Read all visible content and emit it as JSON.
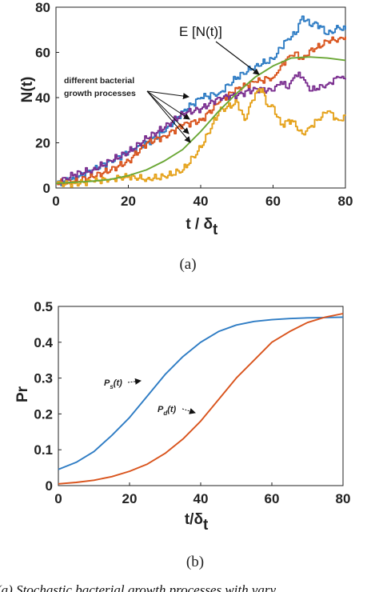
{
  "chart_data": [
    {
      "type": "line",
      "x_ticks": [
        0,
        20,
        40,
        60,
        80
      ],
      "y_ticks": [
        0,
        20,
        40,
        60,
        80
      ],
      "xlim": [
        0,
        80
      ],
      "ylim": [
        0,
        80
      ],
      "xlabel": "t / δt",
      "xlabel_main": "t / δ",
      "xlabel_sub": "t",
      "ylabel": "N(t)",
      "sublabel": "(a)",
      "annotations": {
        "expected": "E [N(t)]",
        "processes_line1": "different bacterial",
        "processes_line2": "growth processes"
      },
      "series": [
        {
          "name": "",
          "color": "#2e7cc4",
          "x": [
            0,
            5,
            10,
            15,
            20,
            25,
            30,
            35,
            40,
            45,
            50,
            55,
            60,
            62,
            64,
            66,
            68,
            70,
            72,
            75,
            78,
            80
          ],
          "y": [
            2,
            4,
            8,
            12,
            16,
            20,
            25,
            34,
            40,
            42,
            49,
            54,
            57,
            62,
            66,
            68,
            76,
            72,
            73,
            68,
            71,
            70
          ]
        },
        {
          "name": "",
          "color": "#d9541d",
          "x": [
            0,
            5,
            10,
            15,
            20,
            25,
            30,
            35,
            40,
            45,
            50,
            55,
            60,
            62,
            64,
            66,
            68,
            70,
            72,
            75,
            78,
            80
          ],
          "y": [
            2,
            3,
            5,
            8,
            12,
            20,
            23,
            28,
            30,
            38,
            44,
            47,
            49,
            54,
            58,
            60,
            57,
            61,
            62,
            65,
            66,
            67
          ]
        },
        {
          "name": "",
          "color": "#7a2e8f",
          "x": [
            0,
            5,
            10,
            15,
            20,
            25,
            30,
            35,
            40,
            45,
            50,
            55,
            60,
            62,
            64,
            66,
            68,
            70,
            72,
            75,
            78,
            80
          ],
          "y": [
            2,
            6,
            8,
            12,
            16,
            22,
            27,
            33,
            35,
            40,
            41,
            44,
            43,
            47,
            44,
            50,
            49,
            43,
            44,
            46,
            49,
            48
          ]
        },
        {
          "name": "",
          "color": "#e5a21b",
          "x": [
            0,
            5,
            10,
            15,
            20,
            25,
            30,
            35,
            40,
            45,
            50,
            52,
            55,
            57,
            58,
            60,
            62,
            65,
            68,
            70,
            72,
            75,
            78,
            80
          ],
          "y": [
            2,
            2,
            3,
            4,
            5,
            4,
            5,
            8,
            18,
            34,
            38,
            30,
            42,
            44,
            37,
            36,
            28,
            30,
            24,
            27,
            30,
            34,
            30,
            32
          ]
        },
        {
          "name": "",
          "color": "#6aa735",
          "x": [
            0,
            5,
            10,
            15,
            20,
            25,
            30,
            35,
            40,
            45,
            50,
            55,
            60,
            65,
            70,
            75,
            80
          ],
          "y": [
            2,
            2.5,
            3,
            3.8,
            5.5,
            8,
            12,
            17,
            25,
            34,
            42,
            49,
            54,
            57.5,
            58,
            57.5,
            56.5
          ]
        }
      ]
    },
    {
      "type": "line",
      "x_ticks": [
        0,
        20,
        40,
        60,
        80
      ],
      "y_ticks": [
        0,
        0.1,
        0.2,
        0.3,
        0.4,
        0.5
      ],
      "y_tick_labels": [
        "0",
        "0.1",
        "0.2",
        "0.3",
        "0.4",
        "0.5"
      ],
      "xlim": [
        0,
        80
      ],
      "ylim": [
        0,
        0.5
      ],
      "xlabel": "t/δt",
      "xlabel_main": "t/δ",
      "xlabel_sub": "t",
      "ylabel": "Pr",
      "sublabel": "(b)",
      "series": [
        {
          "name": "Ps(t)",
          "label_main": "P",
          "label_sub": "s",
          "label_tail": "(t)",
          "color": "#2e7cc4",
          "x": [
            0,
            5,
            10,
            15,
            20,
            25,
            30,
            35,
            40,
            45,
            50,
            55,
            60,
            65,
            70,
            75,
            80
          ],
          "y": [
            0.045,
            0.065,
            0.095,
            0.14,
            0.19,
            0.25,
            0.31,
            0.36,
            0.4,
            0.43,
            0.448,
            0.458,
            0.463,
            0.466,
            0.468,
            0.469,
            0.47
          ]
        },
        {
          "name": "Pd(t)",
          "label_main": "P",
          "label_sub": "d",
          "label_tail": "(t)",
          "color": "#d9541d",
          "x": [
            0,
            5,
            10,
            15,
            20,
            25,
            30,
            35,
            40,
            45,
            50,
            55,
            60,
            65,
            70,
            75,
            80
          ],
          "y": [
            0.005,
            0.009,
            0.015,
            0.025,
            0.04,
            0.06,
            0.09,
            0.13,
            0.18,
            0.24,
            0.3,
            0.35,
            0.4,
            0.43,
            0.455,
            0.47,
            0.48
          ]
        }
      ]
    }
  ],
  "caption": "(a) Stochastic bacterial growth processes with vary"
}
